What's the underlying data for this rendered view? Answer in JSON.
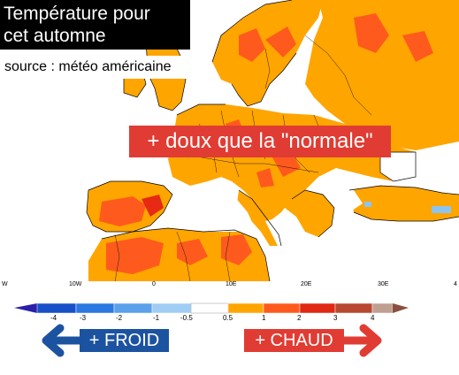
{
  "map": {
    "title_line1": "Température pour",
    "title_line2": "cet automne",
    "source": "source : météo américaine",
    "banner": "+ doux que la \"normale\"",
    "longitude_labels": [
      "W",
      "10W",
      "0",
      "10E",
      "20E",
      "30E",
      "4"
    ],
    "colors": {
      "ocean": "#ffffff",
      "warm_light": "#ffa500",
      "warm_strong": "#ff5a1e",
      "warm_hot": "#e62a14",
      "cool_light": "#8cc4f0",
      "border_lines": "#000000"
    }
  },
  "legend": {
    "tick_labels": [
      "-4",
      "-3",
      "-2",
      "-1",
      "-0.5",
      "0.5",
      "1",
      "2",
      "3",
      "4"
    ],
    "segment_colors": [
      "#2c1fa8",
      "#1750c8",
      "#2a78e0",
      "#5aa0ea",
      "#a0cdf5",
      "#ffffff",
      "#ffa500",
      "#ff5a1e",
      "#e02812",
      "#b84830",
      "#c0a090",
      "#8a5040"
    ],
    "froid_label": "+ FROID",
    "chaud_label": "+ CHAUD",
    "froid_color": "#1c53a0",
    "chaud_color": "#e03c33"
  }
}
